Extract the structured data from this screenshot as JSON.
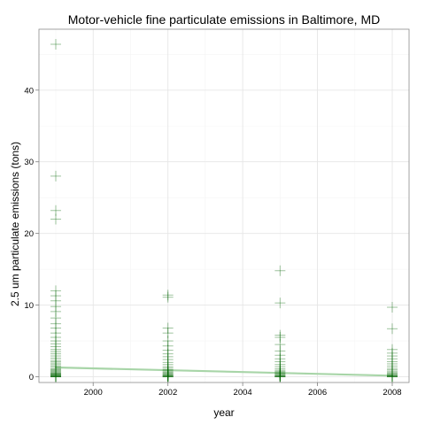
{
  "chart_data": {
    "type": "scatter",
    "title": "Motor-vehicle fine particulate emissions in Baltimore, MD",
    "xlabel": "year",
    "ylabel": "2.5 um particulate emissions (tons)",
    "xlim": [
      1998.55,
      2008.45
    ],
    "ylim": [
      -0.8,
      48.5
    ],
    "x_ticks": [
      2000,
      2002,
      2004,
      2006,
      2008
    ],
    "x_tick_labels": [
      "2000",
      "2002",
      "2004",
      "2006",
      "2008"
    ],
    "y_ticks": [
      0,
      10,
      20,
      30,
      40
    ],
    "y_tick_labels": [
      "0",
      "10",
      "20",
      "30",
      "40"
    ],
    "grid": true,
    "marker": "plus",
    "marker_color": "#006400",
    "trend_color": "#a8d5a8",
    "series": [
      {
        "points": [
          {
            "x": 1999,
            "y": 46.4
          },
          {
            "x": 1999,
            "y": 28.0
          },
          {
            "x": 1999,
            "y": 23.2
          },
          {
            "x": 1999,
            "y": 22.0
          },
          {
            "x": 1999,
            "y": 12.0
          },
          {
            "x": 1999,
            "y": 11.3
          },
          {
            "x": 1999,
            "y": 10.6
          },
          {
            "x": 1999,
            "y": 9.8
          },
          {
            "x": 1999,
            "y": 9.1
          },
          {
            "x": 1999,
            "y": 8.2
          },
          {
            "x": 1999,
            "y": 7.4
          },
          {
            "x": 1999,
            "y": 6.8
          },
          {
            "x": 1999,
            "y": 6.1
          },
          {
            "x": 1999,
            "y": 5.5
          },
          {
            "x": 1999,
            "y": 5.0
          },
          {
            "x": 1999,
            "y": 4.6
          },
          {
            "x": 1999,
            "y": 4.2
          },
          {
            "x": 1999,
            "y": 3.8
          },
          {
            "x": 1999,
            "y": 3.5
          },
          {
            "x": 1999,
            "y": 3.2
          },
          {
            "x": 1999,
            "y": 2.9
          },
          {
            "x": 1999,
            "y": 2.6
          },
          {
            "x": 1999,
            "y": 2.3
          },
          {
            "x": 1999,
            "y": 2.1
          },
          {
            "x": 1999,
            "y": 1.9
          },
          {
            "x": 1999,
            "y": 1.7
          },
          {
            "x": 1999,
            "y": 1.5
          },
          {
            "x": 1999,
            "y": 1.3
          },
          {
            "x": 1999,
            "y": 1.1
          },
          {
            "x": 1999,
            "y": 1.0
          },
          {
            "x": 1999,
            "y": 0.9
          },
          {
            "x": 1999,
            "y": 0.8
          },
          {
            "x": 1999,
            "y": 0.7
          },
          {
            "x": 1999,
            "y": 0.6
          },
          {
            "x": 1999,
            "y": 0.5
          },
          {
            "x": 1999,
            "y": 0.45
          },
          {
            "x": 1999,
            "y": 0.4
          },
          {
            "x": 1999,
            "y": 0.35
          },
          {
            "x": 1999,
            "y": 0.3
          },
          {
            "x": 1999,
            "y": 0.25
          },
          {
            "x": 1999,
            "y": 0.2
          },
          {
            "x": 1999,
            "y": 0.15
          },
          {
            "x": 1999,
            "y": 0.1
          },
          {
            "x": 1999,
            "y": 0.07
          },
          {
            "x": 1999,
            "y": 0.05
          },
          {
            "x": 1999,
            "y": 0.03
          },
          {
            "x": 1999,
            "y": 0.02
          },
          {
            "x": 1999,
            "y": 0.01
          },
          {
            "x": 1999,
            "y": 0.0
          },
          {
            "x": 2002,
            "y": 11.4
          },
          {
            "x": 2002,
            "y": 11.1
          },
          {
            "x": 2002,
            "y": 6.8
          },
          {
            "x": 2002,
            "y": 6.1
          },
          {
            "x": 2002,
            "y": 5.0
          },
          {
            "x": 2002,
            "y": 4.3
          },
          {
            "x": 2002,
            "y": 3.7
          },
          {
            "x": 2002,
            "y": 3.2
          },
          {
            "x": 2002,
            "y": 2.8
          },
          {
            "x": 2002,
            "y": 2.4
          },
          {
            "x": 2002,
            "y": 2.0
          },
          {
            "x": 2002,
            "y": 1.7
          },
          {
            "x": 2002,
            "y": 1.4
          },
          {
            "x": 2002,
            "y": 1.2
          },
          {
            "x": 2002,
            "y": 1.0
          },
          {
            "x": 2002,
            "y": 0.85
          },
          {
            "x": 2002,
            "y": 0.7
          },
          {
            "x": 2002,
            "y": 0.6
          },
          {
            "x": 2002,
            "y": 0.5
          },
          {
            "x": 2002,
            "y": 0.4
          },
          {
            "x": 2002,
            "y": 0.32
          },
          {
            "x": 2002,
            "y": 0.25
          },
          {
            "x": 2002,
            "y": 0.18
          },
          {
            "x": 2002,
            "y": 0.12
          },
          {
            "x": 2002,
            "y": 0.08
          },
          {
            "x": 2002,
            "y": 0.05
          },
          {
            "x": 2002,
            "y": 0.03
          },
          {
            "x": 2002,
            "y": 0.01
          },
          {
            "x": 2002,
            "y": 0.0
          },
          {
            "x": 2005,
            "y": 14.8
          },
          {
            "x": 2005,
            "y": 10.3
          },
          {
            "x": 2005,
            "y": 5.8
          },
          {
            "x": 2005,
            "y": 5.5
          },
          {
            "x": 2005,
            "y": 4.5
          },
          {
            "x": 2005,
            "y": 3.6
          },
          {
            "x": 2005,
            "y": 3.0
          },
          {
            "x": 2005,
            "y": 2.5
          },
          {
            "x": 2005,
            "y": 2.1
          },
          {
            "x": 2005,
            "y": 1.7
          },
          {
            "x": 2005,
            "y": 1.4
          },
          {
            "x": 2005,
            "y": 1.1
          },
          {
            "x": 2005,
            "y": 0.9
          },
          {
            "x": 2005,
            "y": 0.75
          },
          {
            "x": 2005,
            "y": 0.6
          },
          {
            "x": 2005,
            "y": 0.5
          },
          {
            "x": 2005,
            "y": 0.4
          },
          {
            "x": 2005,
            "y": 0.3
          },
          {
            "x": 2005,
            "y": 0.22
          },
          {
            "x": 2005,
            "y": 0.15
          },
          {
            "x": 2005,
            "y": 0.1
          },
          {
            "x": 2005,
            "y": 0.06
          },
          {
            "x": 2005,
            "y": 0.03
          },
          {
            "x": 2005,
            "y": 0.01
          },
          {
            "x": 2005,
            "y": 0.0
          },
          {
            "x": 2008,
            "y": 9.7
          },
          {
            "x": 2008,
            "y": 6.7
          },
          {
            "x": 2008,
            "y": 3.8
          },
          {
            "x": 2008,
            "y": 3.3
          },
          {
            "x": 2008,
            "y": 2.9
          },
          {
            "x": 2008,
            "y": 2.5
          },
          {
            "x": 2008,
            "y": 2.1
          },
          {
            "x": 2008,
            "y": 1.8
          },
          {
            "x": 2008,
            "y": 1.5
          },
          {
            "x": 2008,
            "y": 1.2
          },
          {
            "x": 2008,
            "y": 1.0
          },
          {
            "x": 2008,
            "y": 0.8
          },
          {
            "x": 2008,
            "y": 0.65
          },
          {
            "x": 2008,
            "y": 0.5
          },
          {
            "x": 2008,
            "y": 0.4
          },
          {
            "x": 2008,
            "y": 0.3
          },
          {
            "x": 2008,
            "y": 0.22
          },
          {
            "x": 2008,
            "y": 0.15
          },
          {
            "x": 2008,
            "y": 0.1
          },
          {
            "x": 2008,
            "y": 0.06
          },
          {
            "x": 2008,
            "y": 0.03
          },
          {
            "x": 2008,
            "y": 0.01
          },
          {
            "x": 2008,
            "y": 0.0
          }
        ]
      }
    ],
    "trend_line": {
      "x": [
        1999,
        2008
      ],
      "y": [
        1.3,
        0.15
      ]
    }
  }
}
